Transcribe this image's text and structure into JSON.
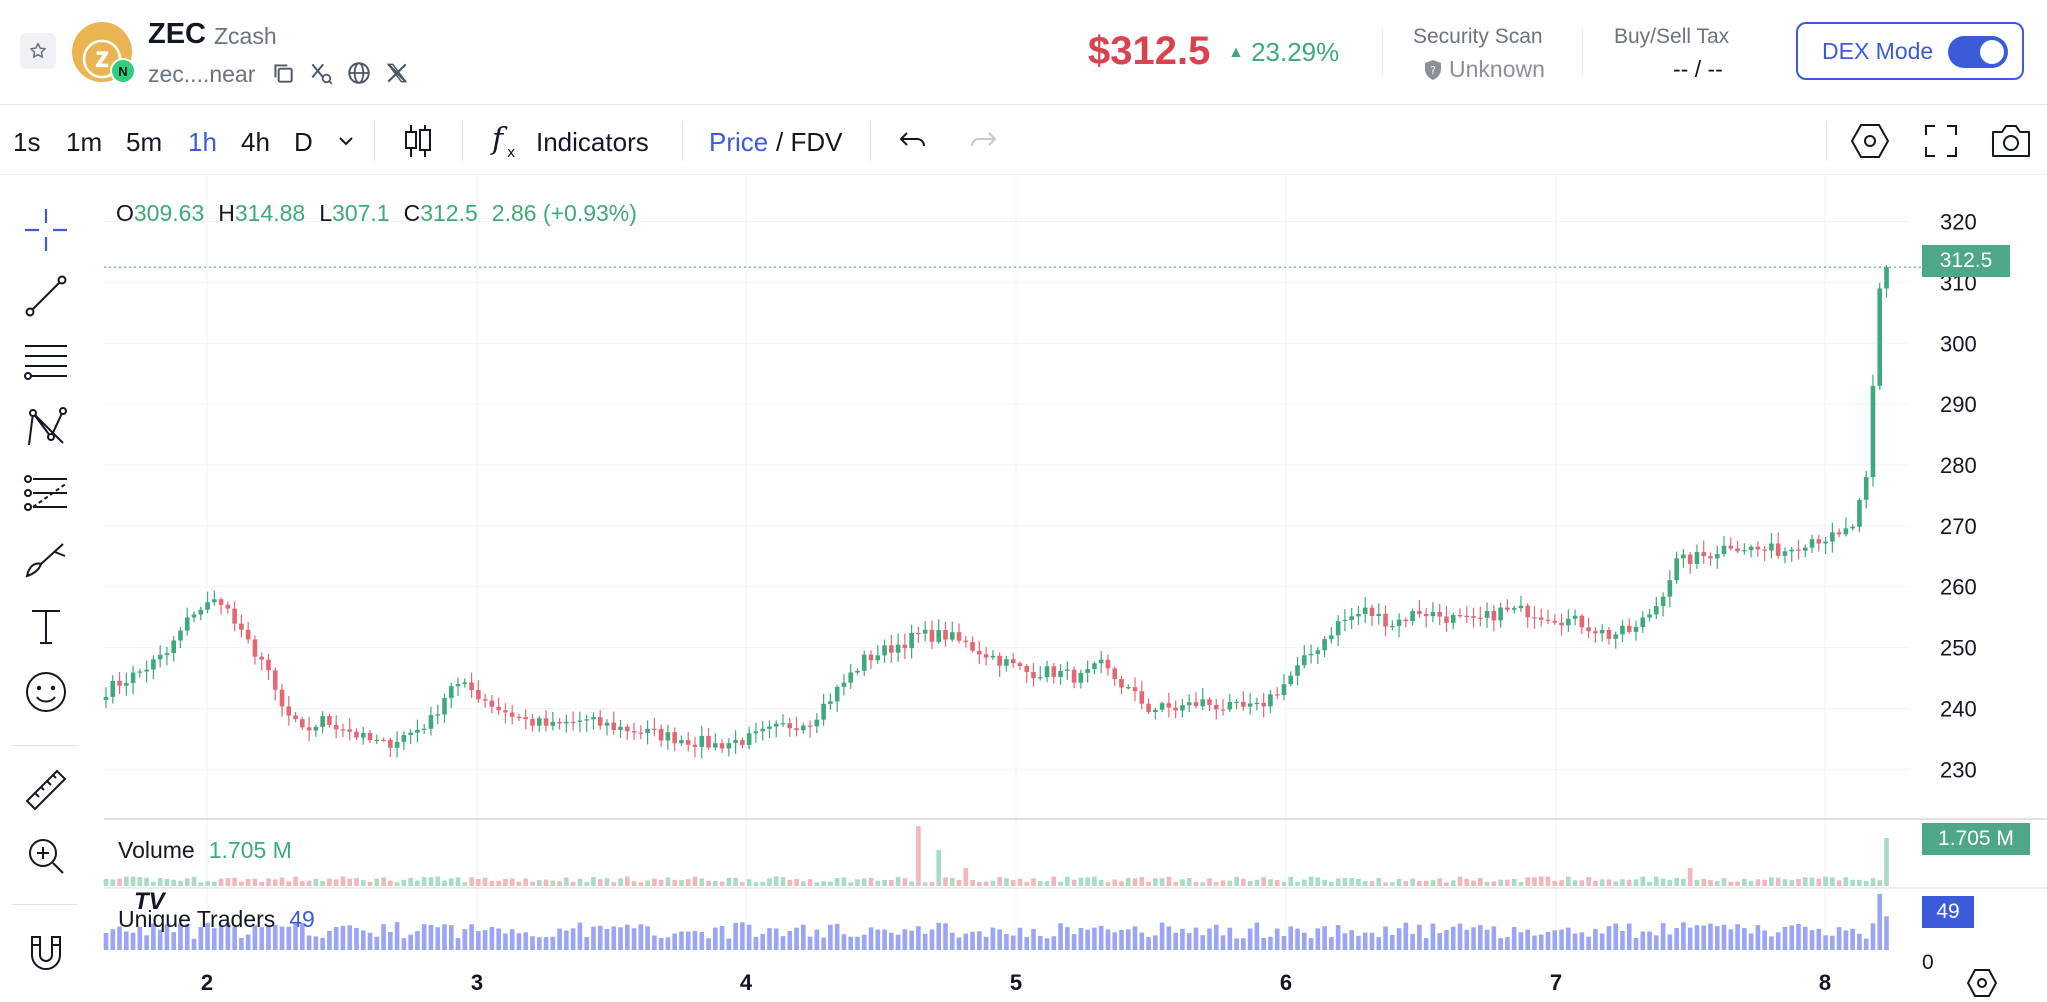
{
  "header": {
    "symbol": "ZEC",
    "name": "Zcash",
    "logo_glyph": "ⓩ",
    "chain_badge": "N",
    "address": "zec....near",
    "price": "$312.5",
    "change_pct": "23.29%",
    "security_label": "Security Scan",
    "security_value": "Unknown",
    "tax_label": "Buy/Sell Tax",
    "tax_value": "-- / --",
    "dex_mode_label": "DEX Mode",
    "dex_mode_on": true
  },
  "toolbar": {
    "timeframes": [
      "1s",
      "1m",
      "5m",
      "1h",
      "4h",
      "D"
    ],
    "active_timeframe": "1h",
    "indicators_label": "Indicators",
    "price_label": "Price",
    "fdv_label": "/ FDV"
  },
  "colors": {
    "up": "#3ea97a",
    "down": "#e36873",
    "accent": "#3b5bdb",
    "traders": "#9aa5f5"
  },
  "ohlc": {
    "o": "309.63",
    "h": "314.88",
    "l": "307.1",
    "c": "312.5",
    "change": "2.86 (+0.93%)"
  },
  "panes": {
    "volume_label": "Volume",
    "volume_value": "1.705 M",
    "traders_label": "Unique Traders",
    "traders_value": "49",
    "traders_axis_zero": "0"
  },
  "price_tag": "312.5",
  "volume_tag": "1.705 M",
  "traders_tag": "49",
  "chart_data": {
    "type": "candlestick",
    "price_ticks": [
      320,
      310,
      300,
      290,
      280,
      270,
      260,
      250,
      240,
      230
    ],
    "ylim": [
      222,
      326
    ],
    "x_ticks": [
      "2",
      "3",
      "4",
      "5",
      "6",
      "7",
      "8"
    ],
    "last_price": 312.5,
    "anchors": [
      [
        0,
        243
      ],
      [
        5,
        246
      ],
      [
        9,
        249
      ],
      [
        13,
        256
      ],
      [
        17,
        258
      ],
      [
        20,
        252
      ],
      [
        23,
        248
      ],
      [
        26,
        240
      ],
      [
        29,
        236
      ],
      [
        32,
        238
      ],
      [
        35,
        237
      ],
      [
        38,
        235
      ],
      [
        41,
        234
      ],
      [
        45,
        236
      ],
      [
        48,
        238
      ],
      [
        51,
        244
      ],
      [
        54,
        243
      ],
      [
        58,
        240
      ],
      [
        62,
        238
      ],
      [
        66,
        237
      ],
      [
        70,
        238
      ],
      [
        75,
        237
      ],
      [
        80,
        236
      ],
      [
        85,
        235
      ],
      [
        90,
        234
      ],
      [
        95,
        235
      ],
      [
        100,
        237
      ],
      [
        104,
        238
      ],
      [
        108,
        243
      ],
      [
        112,
        248
      ],
      [
        116,
        250
      ],
      [
        120,
        252
      ],
      [
        124,
        252
      ],
      [
        128,
        250
      ],
      [
        132,
        248
      ],
      [
        136,
        246
      ],
      [
        140,
        246
      ],
      [
        144,
        245
      ],
      [
        147,
        247
      ],
      [
        150,
        244
      ],
      [
        154,
        240
      ],
      [
        158,
        240
      ],
      [
        162,
        241
      ],
      [
        166,
        240
      ],
      [
        170,
        240
      ],
      [
        174,
        244
      ],
      [
        178,
        249
      ],
      [
        182,
        254
      ],
      [
        186,
        256
      ],
      [
        190,
        254
      ],
      [
        194,
        256
      ],
      [
        198,
        255
      ],
      [
        202,
        254
      ],
      [
        206,
        256
      ],
      [
        210,
        256
      ],
      [
        214,
        255
      ],
      [
        218,
        254
      ],
      [
        222,
        252
      ],
      [
        226,
        253
      ],
      [
        229,
        257
      ],
      [
        232,
        264
      ],
      [
        236,
        265
      ],
      [
        240,
        267
      ],
      [
        244,
        266
      ],
      [
        248,
        266
      ],
      [
        252,
        268
      ],
      [
        256,
        268
      ],
      [
        258,
        270
      ],
      [
        260,
        277
      ],
      [
        262,
        309
      ],
      [
        263,
        312.5
      ]
    ],
    "volume_spikes": [
      [
        120,
        1.0
      ],
      [
        123,
        0.6
      ],
      [
        127,
        0.3
      ],
      [
        263,
        0.8
      ],
      [
        264,
        1.0
      ],
      [
        234,
        0.3
      ]
    ],
    "traders_spikes": [
      [
        262,
        1.0
      ],
      [
        263,
        0.6
      ]
    ]
  }
}
